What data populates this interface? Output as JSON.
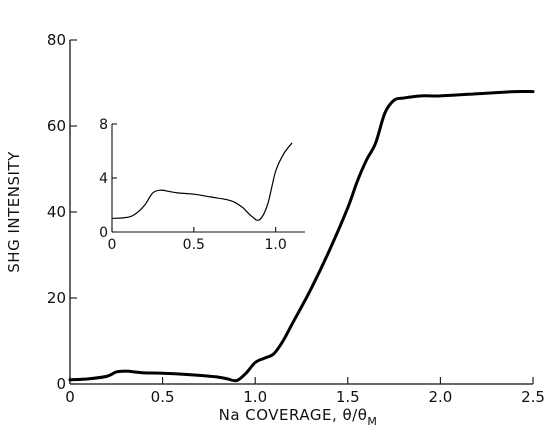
{
  "chart_data": [
    {
      "type": "line",
      "xlabel": "Na COVERAGE, θ/θ",
      "xlabel_subscript": "M",
      "ylabel": "SHG INTENSITY",
      "xlim": [
        0,
        2.5
      ],
      "ylim": [
        0,
        80
      ],
      "xticks": [
        "0",
        "0.5",
        "1.0",
        "1.5",
        "2.0",
        "2.5"
      ],
      "yticks": [
        "0",
        "20",
        "40",
        "60",
        "80"
      ],
      "grid": false,
      "series": [
        {
          "x": [
            0,
            0.1,
            0.2,
            0.25,
            0.3,
            0.35,
            0.4,
            0.5,
            0.6,
            0.7,
            0.8,
            0.85,
            0.9,
            0.95,
            1.0,
            1.05,
            1.1,
            1.15,
            1.2,
            1.3,
            1.4,
            1.5,
            1.55,
            1.6,
            1.65,
            1.7,
            1.75,
            1.8,
            1.9,
            2.0,
            2.2,
            2.4,
            2.5
          ],
          "y": [
            1,
            1.2,
            1.8,
            2.8,
            3.0,
            2.8,
            2.6,
            2.5,
            2.3,
            2.0,
            1.6,
            1.2,
            0.8,
            2.5,
            5.0,
            6.0,
            7.0,
            10,
            14,
            22,
            31,
            41,
            47,
            52,
            56,
            63,
            66,
            66.5,
            67,
            67,
            67.5,
            68,
            68
          ]
        }
      ]
    },
    {
      "type": "line",
      "role": "inset",
      "xlim": [
        0,
        1.1
      ],
      "ylim": [
        0,
        8
      ],
      "xticks": [
        "0",
        "0.5",
        "1.0"
      ],
      "yticks": [
        "0",
        "4",
        "8"
      ],
      "grid": false,
      "series": [
        {
          "x": [
            0,
            0.1,
            0.15,
            0.2,
            0.25,
            0.3,
            0.35,
            0.4,
            0.5,
            0.6,
            0.7,
            0.75,
            0.8,
            0.85,
            0.9,
            0.95,
            1.0,
            1.05,
            1.1
          ],
          "y": [
            1.0,
            1.1,
            1.4,
            2.0,
            2.9,
            3.1,
            3.0,
            2.9,
            2.8,
            2.6,
            2.4,
            2.2,
            1.8,
            1.2,
            0.9,
            2.0,
            4.5,
            5.8,
            6.6
          ]
        }
      ]
    }
  ]
}
